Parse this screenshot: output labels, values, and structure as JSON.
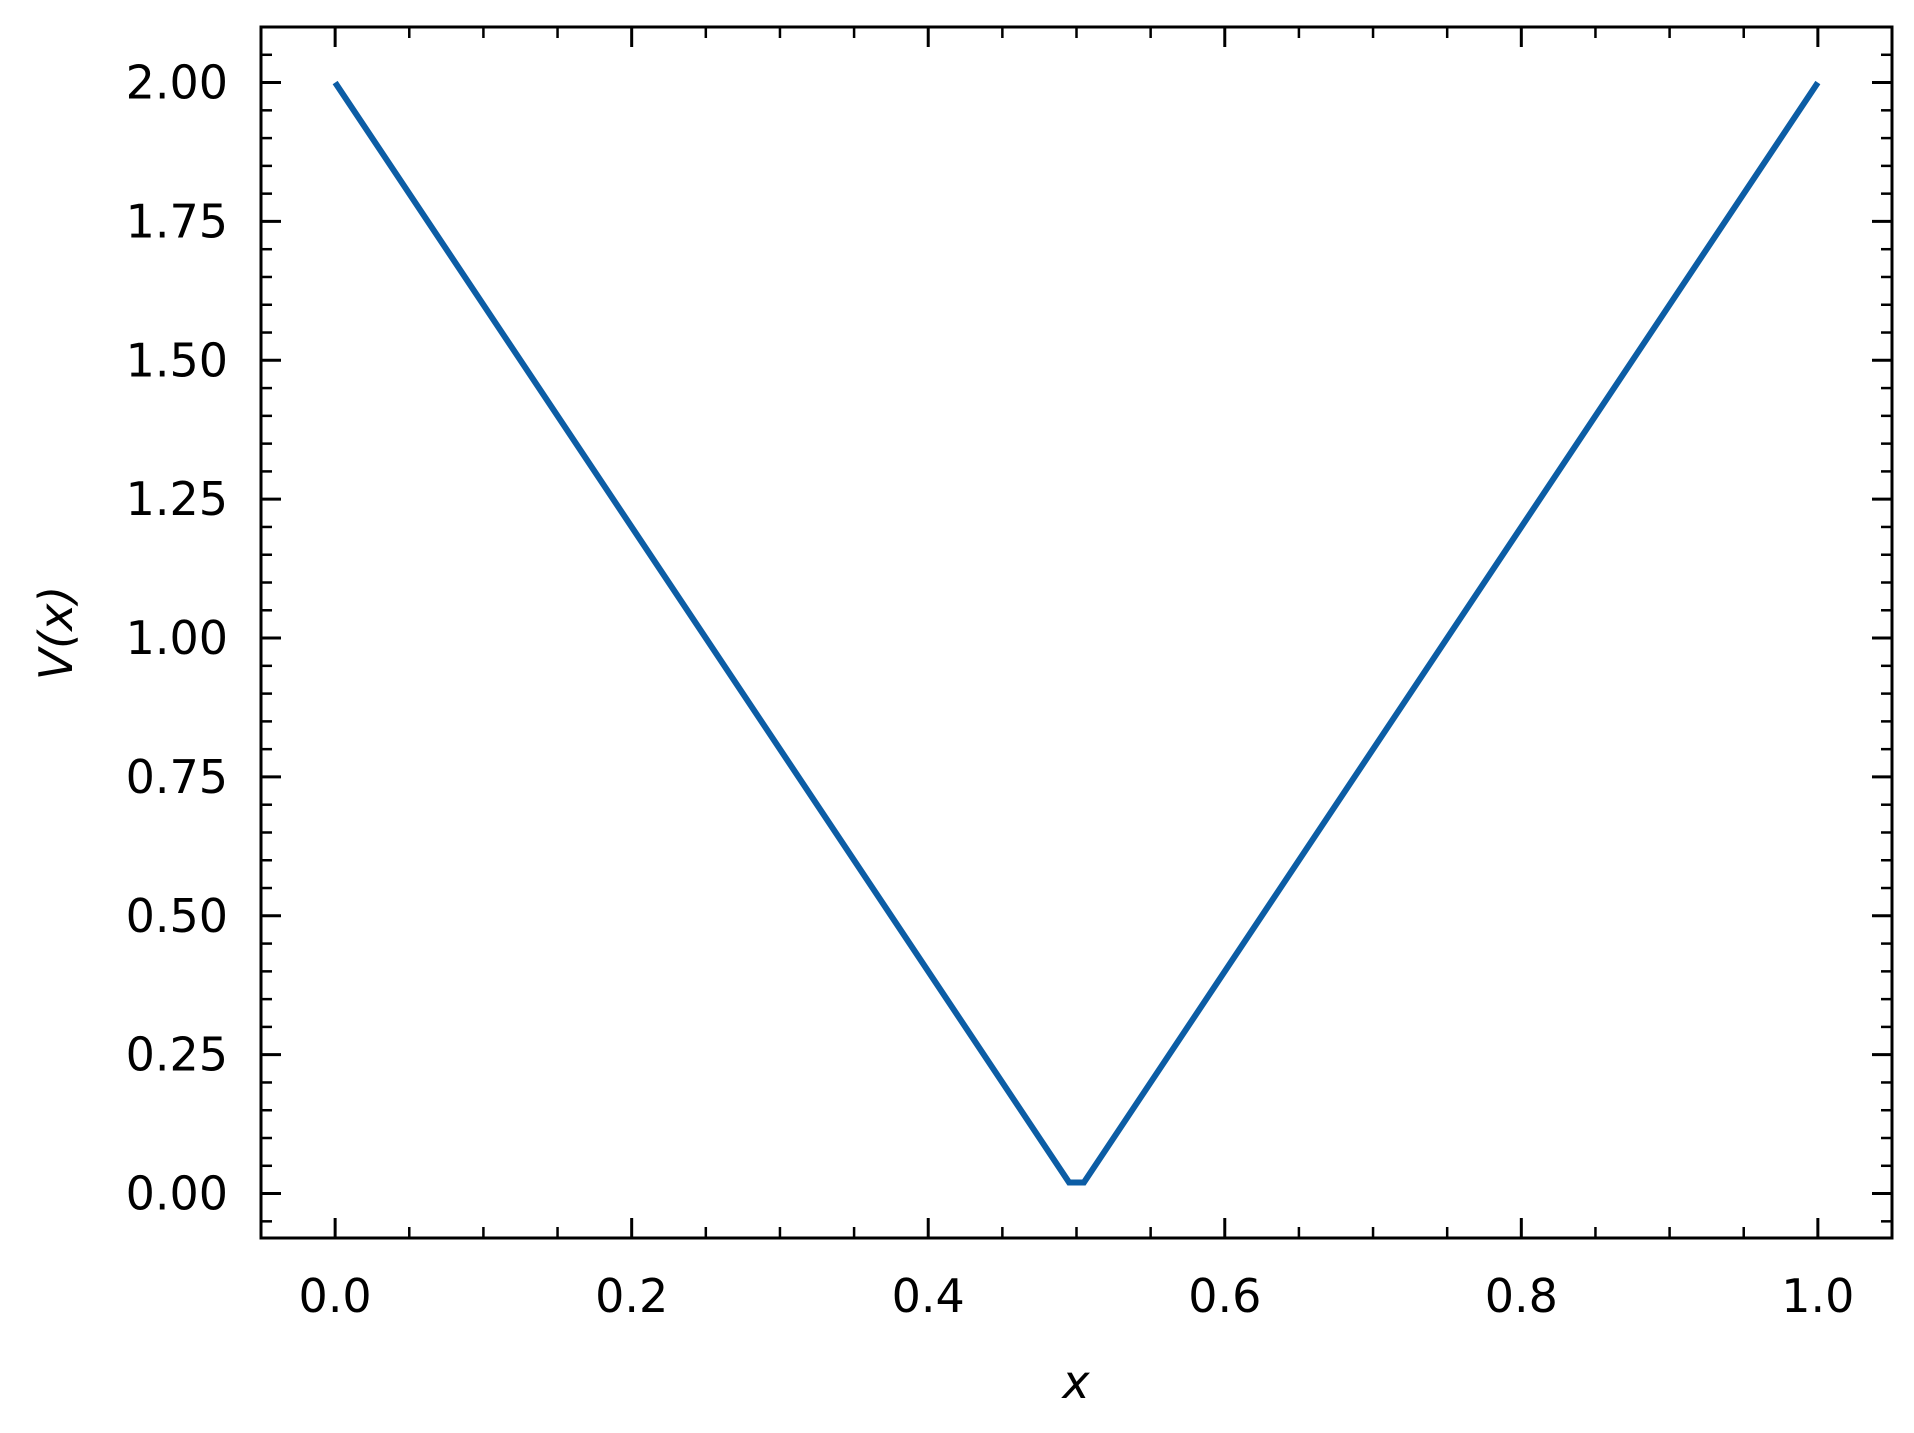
{
  "chart_data": {
    "type": "line",
    "title": "",
    "xlabel": "x",
    "ylabel": "V(x)",
    "xlim": [
      -0.05,
      1.05
    ],
    "ylim": [
      -0.08,
      2.1
    ],
    "x_ticks": [
      0.0,
      0.2,
      0.4,
      0.6,
      0.8,
      1.0
    ],
    "x_tick_labels": [
      "0.0",
      "0.2",
      "0.4",
      "0.6",
      "0.8",
      "1.0"
    ],
    "y_ticks": [
      0.0,
      0.25,
      0.5,
      0.75,
      1.0,
      1.25,
      1.5,
      1.75,
      2.0
    ],
    "y_tick_labels": [
      "0.00",
      "0.25",
      "0.50",
      "0.75",
      "1.00",
      "1.25",
      "1.50",
      "1.75",
      "2.00"
    ],
    "x_minor_step": 0.05,
    "y_minor_step": 0.05,
    "ticks_direction": "in",
    "ticks_on_all_sides": true,
    "grid": false,
    "legend": "none",
    "series": [
      {
        "color": "#0C5DA5",
        "x": [
          0.0,
          0.495,
          0.505,
          1.0
        ],
        "y": [
          2.0,
          0.02,
          0.02,
          2.0
        ]
      }
    ]
  }
}
